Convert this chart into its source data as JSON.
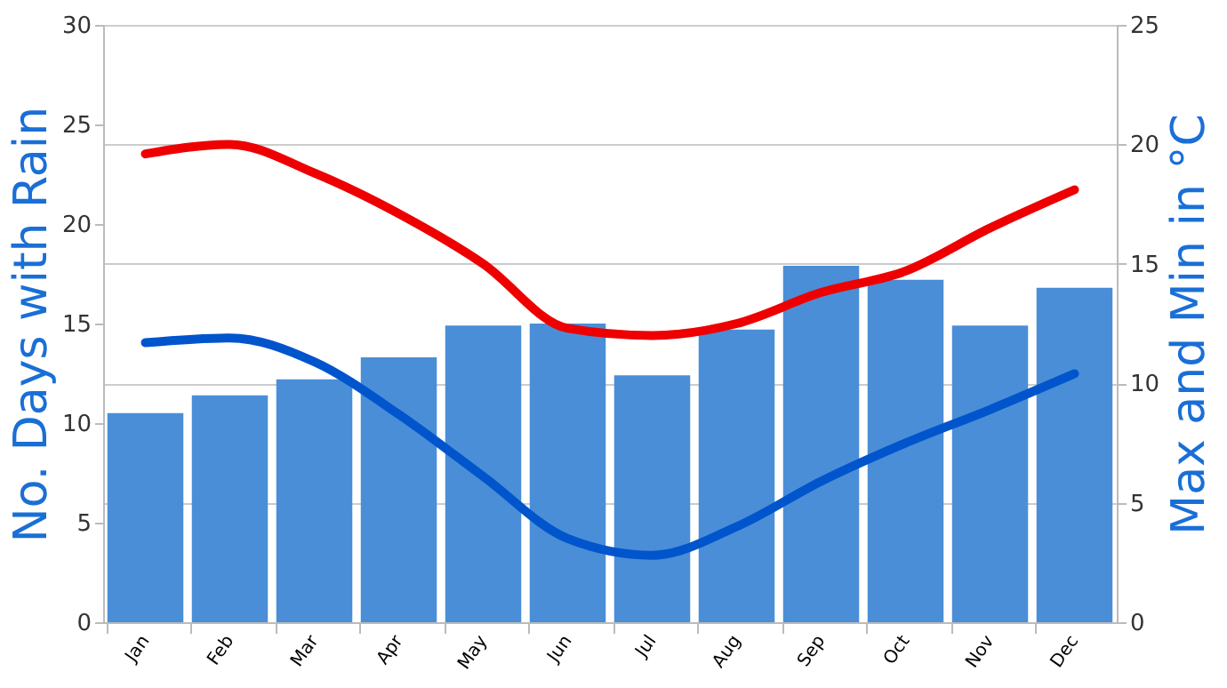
{
  "chart_data": {
    "type": "bar",
    "ylabel": "No. Days with Rain",
    "y2label": "Max and Min in °C",
    "categories": [
      "Jan",
      "Feb",
      "Mar",
      "Apr",
      "May",
      "Jun",
      "Jul",
      "Aug",
      "Sep",
      "Oct",
      "Nov",
      "Dec"
    ],
    "series": [
      {
        "color": "#4a8ed8",
        "values": [
          10.5,
          11.4,
          12.2,
          13.3,
          14.9,
          15,
          12.4,
          14.7,
          17.9,
          17.2,
          14.9,
          16.8
        ]
      },
      {
        "type": "line",
        "axis": "y2",
        "color": "#ee0000",
        "values": [
          19.6,
          20,
          18.8,
          17.1,
          15,
          12.3,
          12,
          12.5,
          13.8,
          14.7,
          16.5,
          18.1
        ]
      },
      {
        "type": "line",
        "axis": "y2",
        "color": "#0055cc",
        "values": [
          11.7,
          11.9,
          10.9,
          8.7,
          6.1,
          3.5,
          2.8,
          4,
          5.9,
          7.5,
          8.9,
          10.4
        ]
      }
    ],
    "ylim": [
      0,
      30
    ],
    "yticks": [
      0,
      5,
      10,
      15,
      20,
      25,
      30
    ],
    "y2lim": [
      0,
      25
    ],
    "y2ticks": [
      0,
      5,
      10,
      15,
      20,
      25
    ],
    "grid": "y2",
    "marker": "none",
    "line_style": "solid"
  }
}
